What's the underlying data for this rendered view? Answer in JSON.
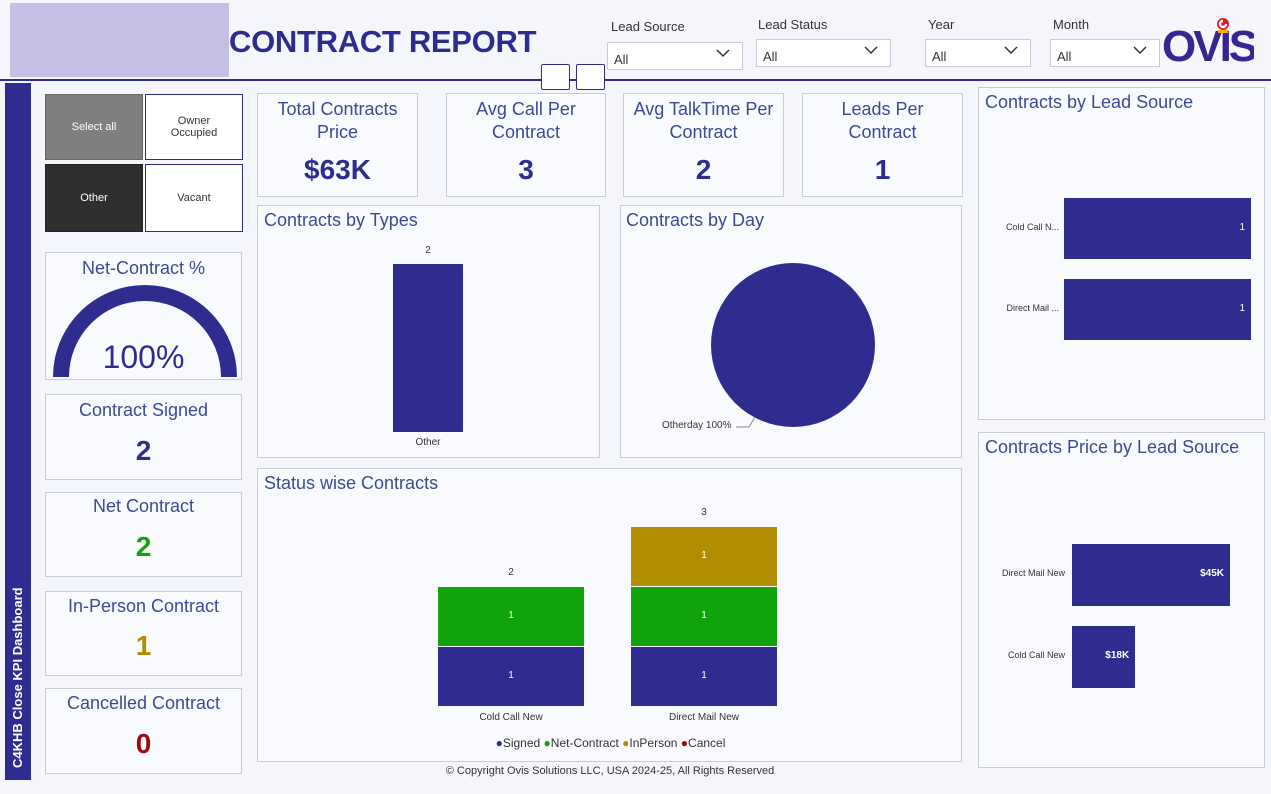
{
  "header": {
    "title": "CONTRACT REPORT",
    "logo_text": "OVIS",
    "filters": [
      {
        "label": "Lead Source",
        "value": "All"
      },
      {
        "label": "Lead Status",
        "value": "All"
      },
      {
        "label": "Year",
        "value": "All"
      },
      {
        "label": "Month",
        "value": "All"
      }
    ]
  },
  "sidebar": {
    "label": "C4KHB Close KPI Dashboard"
  },
  "slicer": {
    "items": [
      "Select all",
      "Owner Occupied",
      "Other",
      "Vacant"
    ]
  },
  "kpis": {
    "net_contract_pct": {
      "title": "Net-Contract %",
      "value": "100%"
    },
    "contract_signed": {
      "title": "Contract Signed",
      "value": "2"
    },
    "net_contract": {
      "title": "Net Contract",
      "value": "2"
    },
    "in_person": {
      "title": "In-Person Contract",
      "value": "1"
    },
    "cancelled": {
      "title": "Cancelled Contract",
      "value": "0"
    },
    "total_price": {
      "title": "Total Contracts Price",
      "value": "$63K"
    },
    "avg_call": {
      "title": "Avg Call Per Contract",
      "value": "3"
    },
    "avg_talktime": {
      "title": "Avg TalkTime Per Contract",
      "value": "2"
    },
    "leads_per": {
      "title": "Leads Per Contract",
      "value": "1"
    }
  },
  "colors": {
    "primary": "#2f2c8f",
    "signed": "#2f2c8f",
    "net_contract": "#10a30c",
    "inperson": "#b18e00",
    "cancel": "#9b0a0a"
  },
  "chart_data": [
    {
      "type": "bar",
      "title": "Contracts by Types",
      "categories": [
        "Other"
      ],
      "values": [
        2
      ],
      "ylim": [
        0,
        2
      ]
    },
    {
      "type": "pie",
      "title": "Contracts by Day",
      "categories": [
        "Otherday"
      ],
      "values": [
        100
      ],
      "labels": [
        "Otherday 100%"
      ]
    },
    {
      "type": "bar",
      "title": "Status wise Contracts",
      "categories": [
        "Cold Call New",
        "Direct Mail New"
      ],
      "series": [
        {
          "name": "Signed",
          "values": [
            1,
            1
          ]
        },
        {
          "name": "Net-Contract",
          "values": [
            1,
            1
          ]
        },
        {
          "name": "InPerson",
          "values": [
            0,
            1
          ]
        },
        {
          "name": "Cancel",
          "values": [
            0,
            0
          ]
        }
      ],
      "totals": [
        "2",
        "3"
      ],
      "segment_labels": [
        [
          "1",
          "1"
        ],
        [
          "1",
          "1",
          "1"
        ]
      ],
      "ylim": [
        0,
        3
      ]
    },
    {
      "type": "bar",
      "orientation": "horizontal",
      "title": "Contracts by Lead Source",
      "categories": [
        "Cold Call N...",
        "Direct Mail ..."
      ],
      "values": [
        1,
        1
      ],
      "labels": [
        "1",
        "1"
      ],
      "xlim": [
        0,
        1
      ]
    },
    {
      "type": "bar",
      "orientation": "horizontal",
      "title": "Contracts Price by Lead Source",
      "categories": [
        "Direct Mail New",
        "Cold Call New"
      ],
      "values": [
        45,
        18
      ],
      "labels": [
        "$45K",
        "$18K"
      ],
      "unit": "K USD",
      "xlim": [
        0,
        45
      ]
    }
  ],
  "footer": {
    "copyright": "© Copyright Ovis Solutions LLC, USA 2024-25, All Rights Reserved"
  }
}
